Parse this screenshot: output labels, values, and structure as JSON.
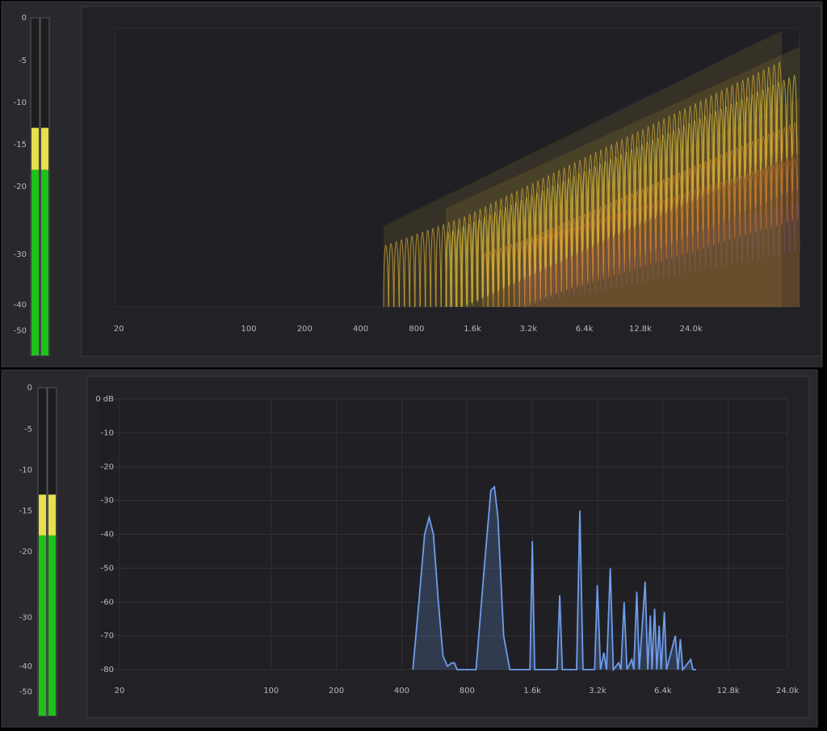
{
  "waterfall": {
    "meter": {
      "ticks": [
        0,
        -5,
        -10,
        -15,
        -20,
        -30,
        -40,
        -50
      ],
      "range": [
        -60,
        0
      ],
      "channels": [
        -13,
        -13
      ],
      "yellow_from": -18,
      "yellow": "#e6df4e",
      "green": "#1ec21b"
    },
    "xlim": [
      19,
      92000
    ],
    "xticks": [
      20,
      100,
      200,
      400,
      800,
      {
        "value": 1600,
        "label": "1.6k"
      },
      {
        "value": 3200,
        "label": "3.2k"
      },
      {
        "value": 6400,
        "label": "6.4k"
      },
      {
        "value": 12800,
        "label": "12.8k"
      },
      {
        "value": 24000,
        "label": "24.0k"
      }
    ]
  },
  "spectrum": {
    "meter": {
      "ticks": [
        0,
        -5,
        -10,
        -15,
        -20,
        -30,
        -40,
        -50
      ],
      "range": [
        -60,
        0
      ],
      "channels": [
        -13,
        -13
      ],
      "yellow_from": -18,
      "yellow": "#e6df4e",
      "green": "#1ec21b"
    },
    "xlim": [
      16,
      24000
    ],
    "xticks": [
      20,
      100,
      200,
      400,
      800,
      {
        "value": 1600,
        "label": "1.6k"
      },
      {
        "value": 3200,
        "label": "3.2k"
      },
      {
        "value": 6400,
        "label": "6.4k"
      },
      {
        "value": 12800,
        "label": "12.8k"
      },
      {
        "value": 24000,
        "label": "24.0k"
      }
    ],
    "ylim": [
      -80,
      0
    ],
    "yticks": [
      {
        "value": 0,
        "label": "0 dB"
      },
      -10,
      -20,
      -30,
      -40,
      -50,
      -60,
      -70,
      -80
    ],
    "color": "#6f9cec",
    "x": [
      450,
      480,
      510,
      535,
      560,
      590,
      620,
      650,
      680,
      700,
      720,
      880,
      960,
      1030,
      1070,
      1110,
      1180,
      1260,
      1560,
      1600,
      1640,
      2080,
      2140,
      2200,
      2560,
      2650,
      2740,
      3100,
      3190,
      3300,
      3420,
      3520,
      3660,
      3780,
      4000,
      4100,
      4240,
      4370,
      4600,
      4700,
      4850,
      4980,
      5300,
      5450,
      5600,
      5700,
      5860,
      6000,
      6150,
      6280,
      6500,
      6650,
      7300,
      7500,
      7700,
      7900,
      8600,
      8800,
      9100
    ],
    "y": [
      -80,
      -60,
      -40,
      -35,
      -40,
      -60,
      -76,
      -79,
      -78,
      -78,
      -80,
      -80,
      -50,
      -27,
      -26,
      -35,
      -70,
      -80,
      -80,
      -42,
      -80,
      -80,
      -58,
      -80,
      -80,
      -33,
      -80,
      -80,
      -55,
      -80,
      -75,
      -80,
      -50,
      -80,
      -78,
      -80,
      -60,
      -80,
      -77,
      -80,
      -57,
      -80,
      -54,
      -80,
      -64,
      -80,
      -62,
      -80,
      -67,
      -80,
      -63,
      -80,
      -70,
      -80,
      -71,
      -80,
      -77,
      -80,
      -80
    ]
  }
}
